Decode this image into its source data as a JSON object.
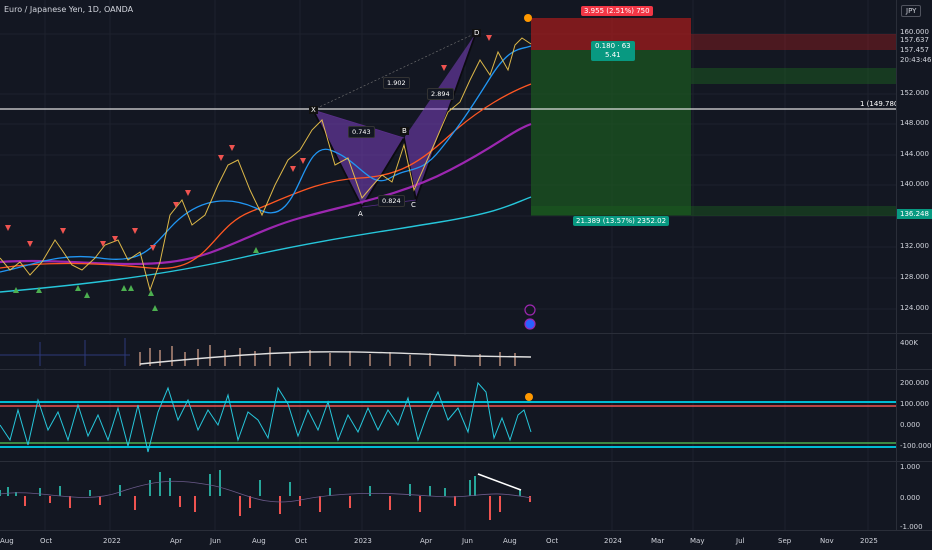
{
  "header": {
    "title": "Euro / Japanese Yen, 1D, OANDA",
    "currency_button": "JPY"
  },
  "price_axis": {
    "ticks": [
      "160.000",
      "152.000",
      "148.000",
      "144.000",
      "140.000",
      "136.000",
      "132.000",
      "128.000",
      "124.000"
    ],
    "badges": {
      "current": "157.637",
      "second": "157.457",
      "countdown": "20:43:46",
      "stop": "136.248"
    }
  },
  "volume_axis": {
    "label": "400K"
  },
  "cci_axis": {
    "ticks": [
      "200.000",
      "100.000",
      "0.000",
      "-100.000"
    ]
  },
  "osc_axis": {
    "ticks": [
      "1.000",
      "0.000",
      "-1.000"
    ]
  },
  "time_axis": {
    "labels": [
      "Aug",
      "Oct",
      "2022",
      "Apr",
      "Jun",
      "Aug",
      "Oct",
      "2023",
      "Apr",
      "Jun",
      "Aug",
      "Oct",
      "2024",
      "Mar",
      "May",
      "Jul",
      "Sep",
      "Nov",
      "2025"
    ]
  },
  "position_tool": {
    "stop_label": "3.955 (2.51%) 750",
    "ratio_label": "0.180 · 63",
    "ratio_sub": "5.41",
    "target_label": "21.389 (13.57%) 2352.02"
  },
  "level_line": {
    "label": "1 (149.780)"
  },
  "pattern": {
    "points": {
      "X": "X",
      "A": "A",
      "B": "B",
      "C": "C",
      "D": "D"
    },
    "ratios": {
      "xab": "0.743",
      "abc": "0.824",
      "bcd": "2.894",
      "xad": "1.902"
    }
  },
  "colors": {
    "bg": "#131722",
    "up": "#26a69a",
    "down": "#ef5350",
    "purple": "#9c27b0",
    "cyan": "#00bcd4",
    "teal_ma": "#26c6da",
    "orange_ma": "#ff5722"
  }
}
